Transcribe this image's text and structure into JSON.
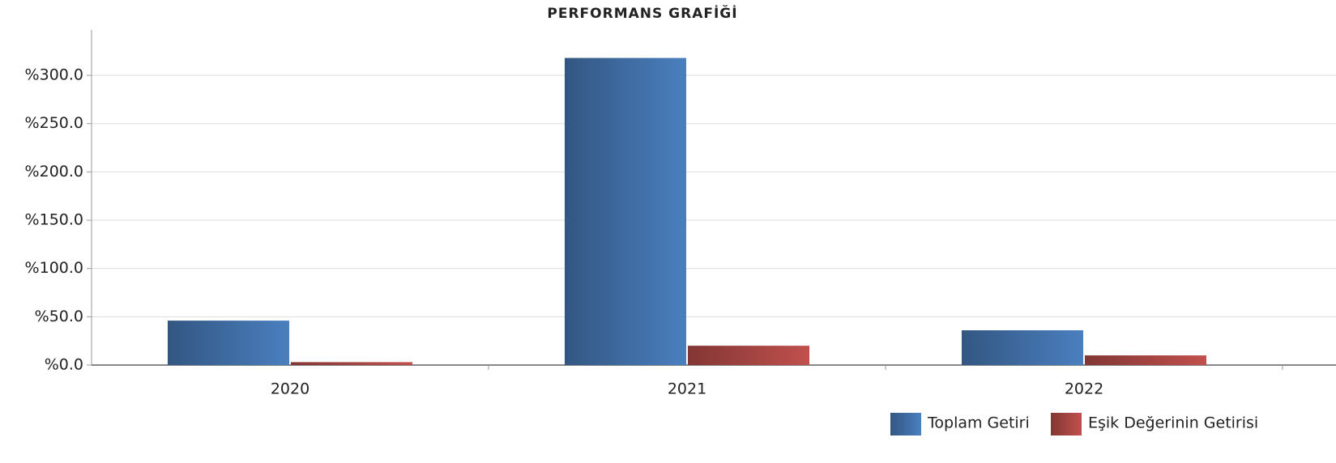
{
  "chart_data": {
    "type": "bar",
    "title": "PERFORMANS GRAFİĞİ",
    "categories": [
      "2020",
      "2021",
      "2022"
    ],
    "series": [
      {
        "name": "Toplam Getiri",
        "color": "#4a7fbf",
        "values": [
          46,
          318,
          36
        ]
      },
      {
        "name": "Eşik Değerinin Getirisi",
        "color": "#c0504d",
        "values": [
          3,
          20,
          10
        ]
      }
    ],
    "ylim": [
      0,
      347
    ],
    "yticks": [
      {
        "value": 0,
        "label": "%0.0"
      },
      {
        "value": 50,
        "label": "%50.0"
      },
      {
        "value": 100,
        "label": "%100.0"
      },
      {
        "value": 150,
        "label": "%150.0"
      },
      {
        "value": 200,
        "label": "%200.0"
      },
      {
        "value": 250,
        "label": "%250.0"
      },
      {
        "value": 300,
        "label": "%300.0"
      }
    ],
    "grid": true,
    "legend": "bottom-right"
  }
}
